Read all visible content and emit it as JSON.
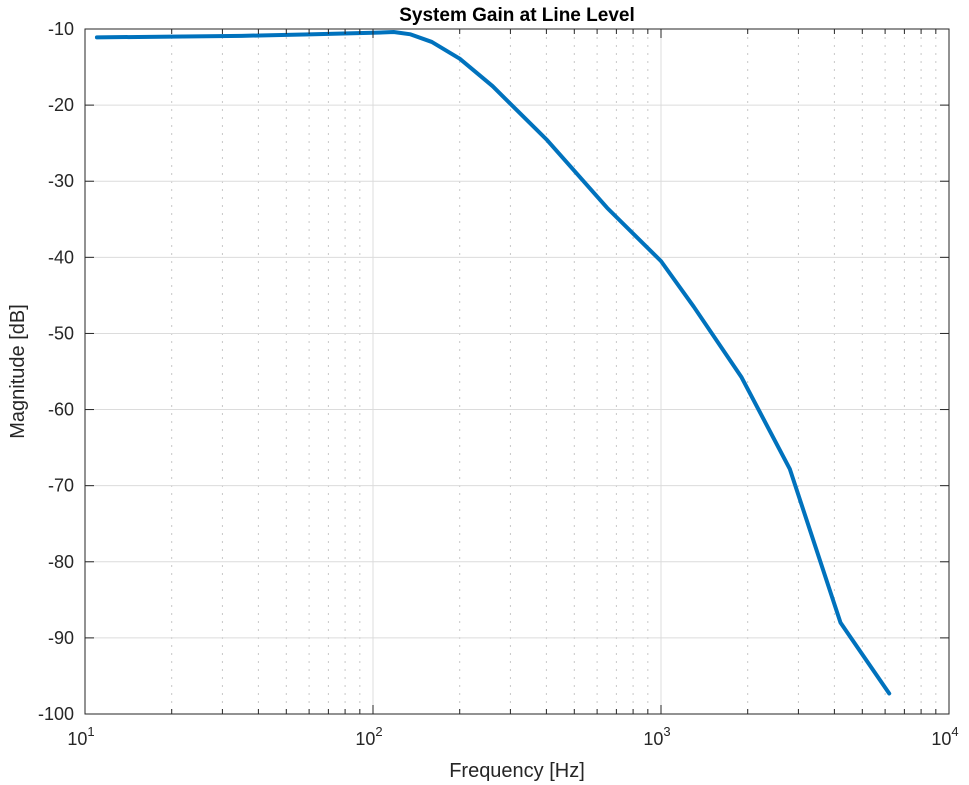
{
  "chart_data": {
    "type": "line",
    "title": "System Gain at Line Level",
    "xlabel": "Frequency [Hz]",
    "ylabel": "Magnitude [dB]",
    "x_scale": "log",
    "xlim": [
      10,
      10000
    ],
    "ylim": [
      -100,
      -10
    ],
    "x_ticks": [
      {
        "base": "10",
        "exp": "1"
      },
      {
        "base": "10",
        "exp": "2"
      },
      {
        "base": "10",
        "exp": "3"
      },
      {
        "base": "10",
        "exp": "4"
      }
    ],
    "y_ticks": [
      "-10",
      "-20",
      "-30",
      "-40",
      "-50",
      "-60",
      "-70",
      "-80",
      "-90",
      "-100"
    ],
    "grid": true,
    "box": true,
    "series": [
      {
        "color": "#0072BD",
        "x": [
          11,
          20,
          35,
          60,
          100,
          118,
          135,
          160,
          200,
          260,
          400,
          650,
          1000,
          1300,
          1900,
          2800,
          4200,
          6200
        ],
        "y": [
          -11.1,
          -11.0,
          -10.9,
          -10.7,
          -10.5,
          -10.4,
          -10.7,
          -11.7,
          -13.9,
          -17.5,
          -24.5,
          -33.5,
          -40.5,
          -46.5,
          -55.7,
          -67.8,
          -88.0,
          -97.3
        ]
      }
    ]
  }
}
